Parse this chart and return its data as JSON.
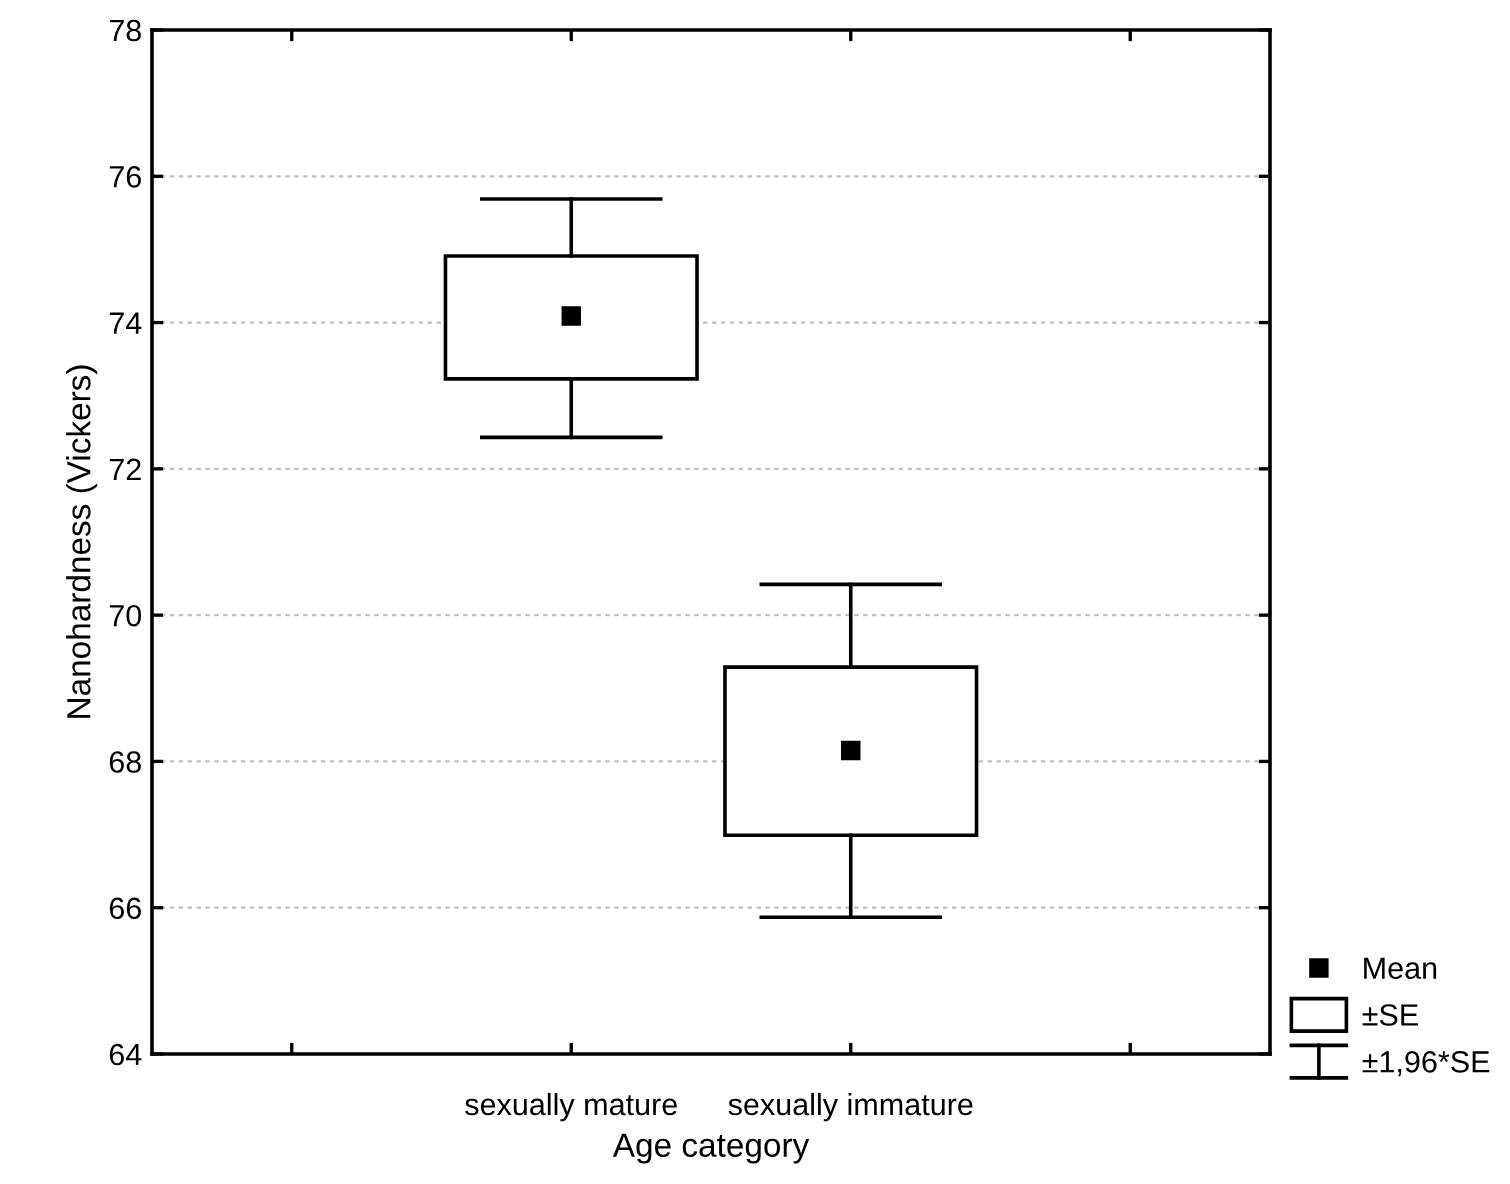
{
  "chart_data": {
    "type": "box",
    "xlabel": "Age category",
    "ylabel": "Nanohardness (Vickers)",
    "categories": [
      "sexually mature",
      "sexually immature"
    ],
    "boxes": [
      {
        "low": 72.43,
        "q1": 73.23,
        "q3": 74.91,
        "high": 75.69,
        "mean": 74.09
      },
      {
        "low": 65.87,
        "q1": 66.99,
        "q3": 69.29,
        "high": 70.42,
        "mean": 68.15
      }
    ],
    "color": "#000000",
    "ylim": [
      64,
      78
    ],
    "yticks": [
      64,
      66,
      68,
      70,
      72,
      74,
      76,
      78
    ],
    "grid": "y",
    "marker": "square",
    "annotations": [
      "Mean",
      "±SE",
      "±1,96*SE"
    ]
  }
}
